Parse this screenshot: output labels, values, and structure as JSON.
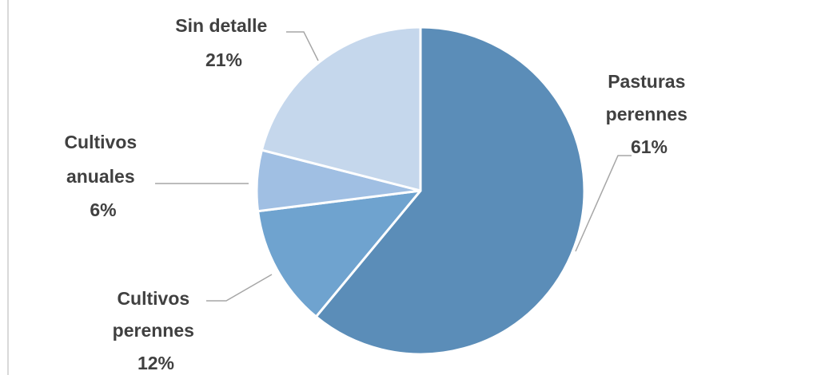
{
  "chart_data": {
    "type": "pie",
    "colors": [
      "#5b8db8",
      "#6fa3cf",
      "#a0bfe3",
      "#c5d7ec"
    ],
    "slices": [
      {
        "lines": [
          "Pasturas",
          "perennes"
        ],
        "value": 61,
        "value_label": "61%",
        "color": "#5b8db8"
      },
      {
        "lines": [
          "Cultivos",
          "perennes"
        ],
        "value": 12,
        "value_label": "12%",
        "color": "#6fa3cf"
      },
      {
        "lines": [
          "Cultivos",
          "anuales"
        ],
        "value": 6,
        "value_label": "6%",
        "color": "#a0bfe3"
      },
      {
        "lines": [
          "Sin detalle"
        ],
        "value": 21,
        "value_label": "21%",
        "color": "#c5d7ec"
      }
    ]
  }
}
